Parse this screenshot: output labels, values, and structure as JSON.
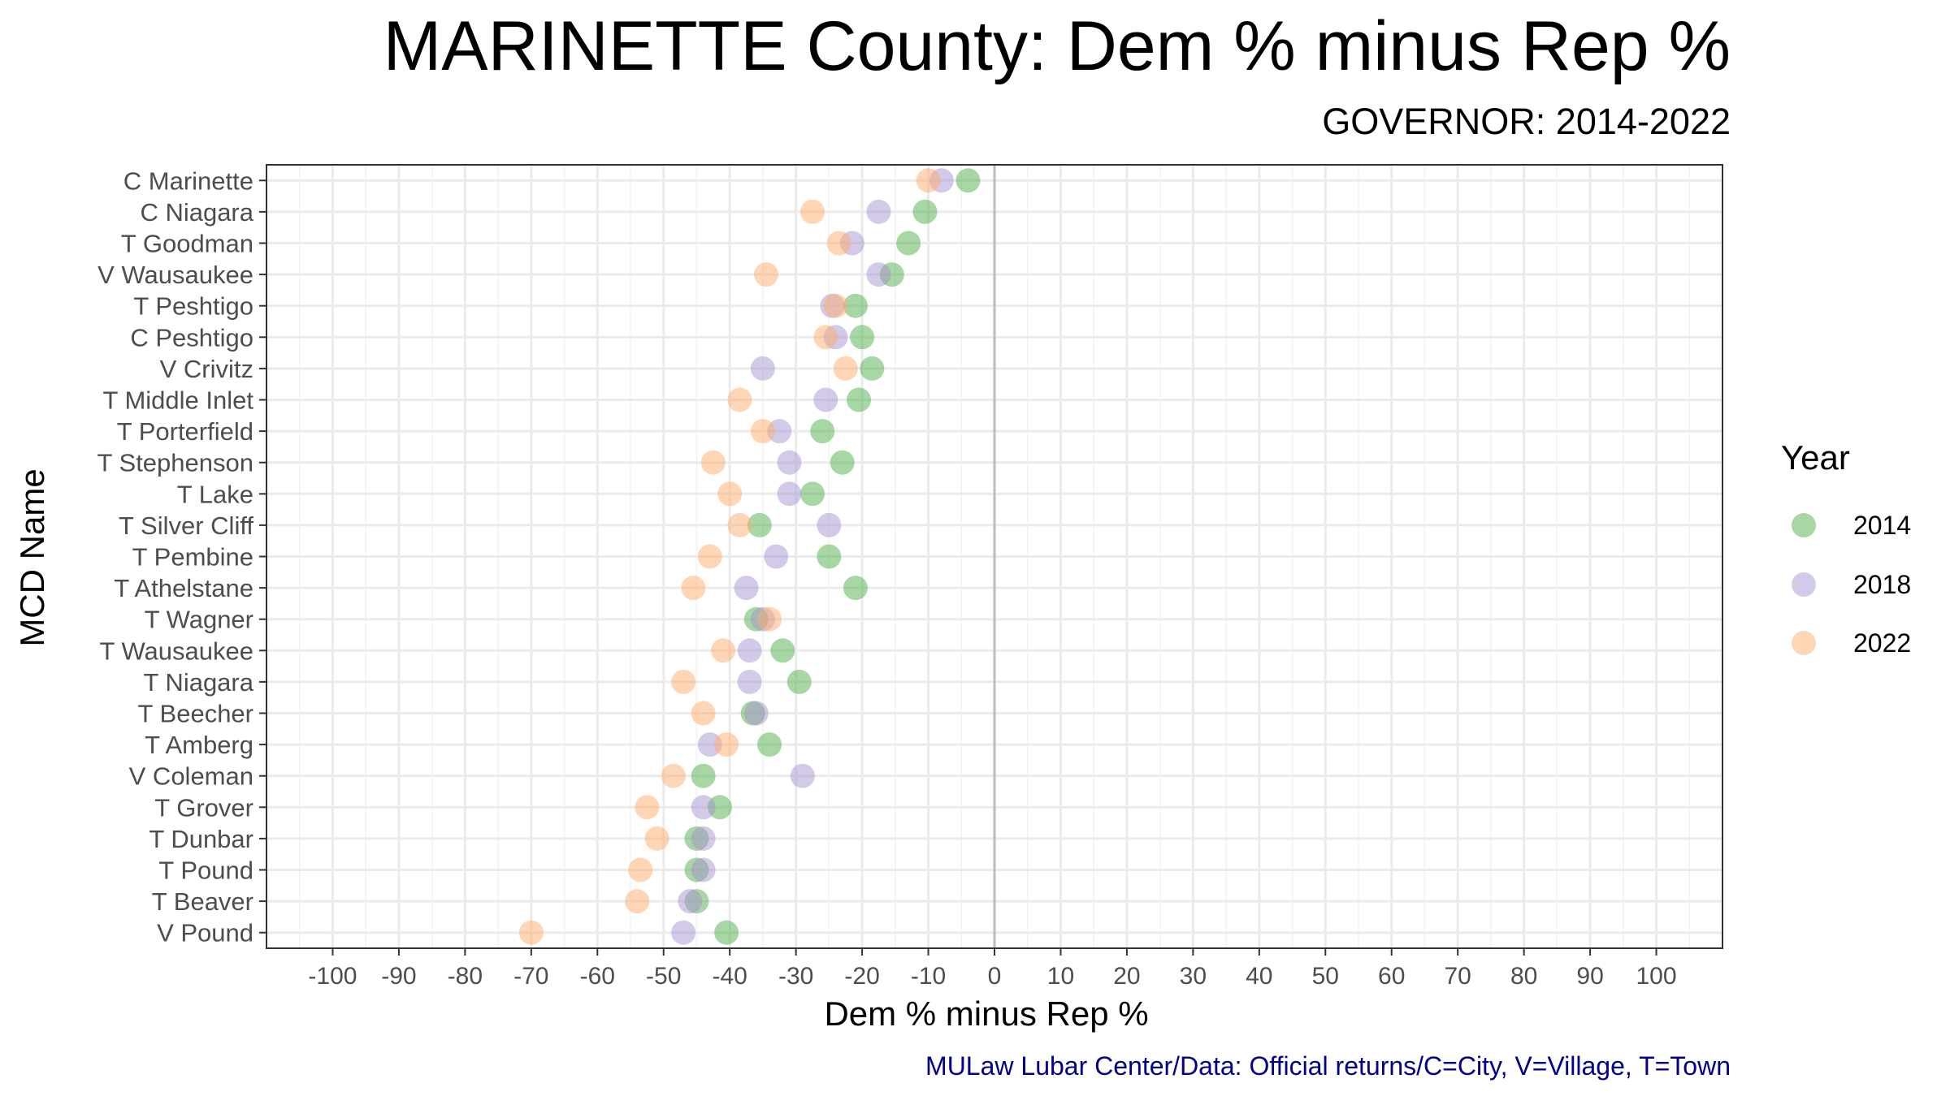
{
  "chart_data": {
    "type": "scatter",
    "title": "MARINETTE County: Dem % minus Rep %",
    "subtitle": "GOVERNOR: 2014-2022",
    "xlabel": "Dem % minus Rep %",
    "ylabel": "MCD Name",
    "caption": "MULaw Lubar Center/Data: Official returns/C=City, V=Village, T=Town",
    "xlim": [
      -110,
      110
    ],
    "x_ticks": [
      -100,
      -90,
      -80,
      -70,
      -60,
      -50,
      -40,
      -30,
      -20,
      -10,
      0,
      10,
      20,
      30,
      40,
      50,
      60,
      70,
      80,
      90,
      100
    ],
    "grid": true,
    "reference_line_x": 0,
    "legend_title": "Year",
    "legend_position": "right",
    "categories": [
      "C Marinette",
      "C Niagara",
      "T Goodman",
      "V Wausaukee",
      "T Peshtigo",
      "C Peshtigo",
      "V Crivitz",
      "T Middle Inlet",
      "T Porterfield",
      "T Stephenson",
      "T Lake",
      "T Silver Cliff",
      "T Pembine",
      "T Athelstane",
      "T Wagner",
      "T Wausaukee",
      "T Niagara",
      "T Beecher",
      "T Amberg",
      "V Coleman",
      "T Grover",
      "T Dunbar",
      "T Pound",
      "T Beaver",
      "V Pound"
    ],
    "series": [
      {
        "name": "2014",
        "color": "#4daf4a",
        "values": [
          -4,
          -10.5,
          -13,
          -15.5,
          -21,
          -20,
          -18.5,
          -20.5,
          -26,
          -23,
          -27.5,
          -35.5,
          -25,
          -21,
          -36,
          -32,
          -29.5,
          -36.5,
          -34,
          -44,
          -41.5,
          -45,
          -45,
          -45,
          -40.5
        ]
      },
      {
        "name": "2018",
        "color": "#a794d1",
        "values": [
          -8,
          -17.5,
          -21.5,
          -17.5,
          -24.5,
          -24,
          -35,
          -25.5,
          -32.5,
          -31,
          -31,
          -25,
          -33,
          -37.5,
          -35,
          -37,
          -37,
          -36,
          -43,
          -29,
          -44,
          -44,
          -44,
          -46,
          -47
        ]
      },
      {
        "name": "2022",
        "color": "#fdae6b",
        "values": [
          -10,
          -27.5,
          -23.5,
          -34.5,
          -24,
          -25.5,
          -22.5,
          -38.5,
          -35,
          -42.5,
          -40,
          -38.5,
          -43,
          -45.5,
          -34,
          -41,
          -47,
          -44,
          -40.5,
          -48.5,
          -52.5,
          -51,
          -53.5,
          -54,
          -70
        ]
      }
    ]
  }
}
